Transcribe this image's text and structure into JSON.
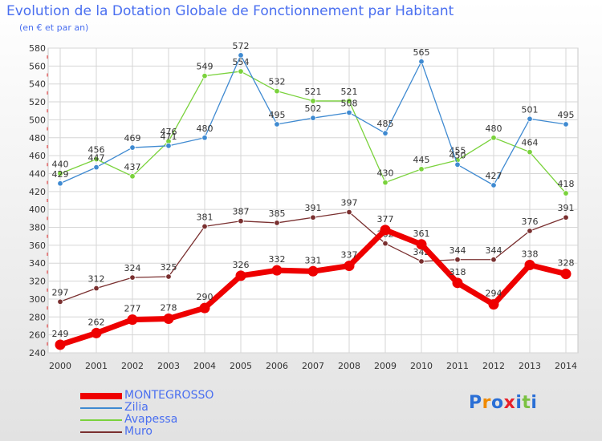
{
  "chart_data": {
    "type": "line",
    "title": "Evolution de la Dotation Globale de Fonctionnement par Habitant",
    "subtitle": "(en € et par an)",
    "x": [
      "2000",
      "2001",
      "2002",
      "2003",
      "2004",
      "2005",
      "2006",
      "2007",
      "2008",
      "2009",
      "2010",
      "2011",
      "2012",
      "2013",
      "2014"
    ],
    "ylim": [
      240,
      580
    ],
    "yticks": [
      240,
      260,
      280,
      300,
      320,
      340,
      360,
      380,
      400,
      420,
      440,
      460,
      480,
      500,
      520,
      540,
      560,
      580
    ],
    "grid": true,
    "legend_position": "bottom-left",
    "series": [
      {
        "name": "Muro",
        "color": "#7a3030",
        "values": [
          297,
          312,
          324,
          325,
          381,
          387,
          385,
          391,
          397,
          362,
          342,
          344,
          344,
          376,
          391
        ]
      },
      {
        "name": "Avapessa",
        "color": "#7ad23c",
        "values": [
          440,
          456,
          437,
          476,
          549,
          554,
          532,
          521,
          521,
          430,
          445,
          455,
          480,
          464,
          418
        ]
      },
      {
        "name": "Zilia",
        "color": "#3f8ad1",
        "values": [
          429,
          447,
          469,
          471,
          480,
          572,
          495,
          502,
          508,
          485,
          565,
          450,
          427,
          501,
          495
        ]
      },
      {
        "name": "MONTEGROSSO",
        "color": "#ee0000",
        "values": [
          249,
          262,
          277,
          278,
          290,
          326,
          332,
          331,
          337,
          377,
          361,
          318,
          294,
          338,
          328
        ]
      }
    ],
    "legend_order": [
      "MONTEGROSSO",
      "Zilia",
      "Avapessa",
      "Muro"
    ]
  },
  "logo": {
    "letters": [
      "P",
      "r",
      "o",
      "x",
      "i",
      "t",
      "i"
    ],
    "colors": [
      "#2a6fd6",
      "#f08a00",
      "#2a6fd6",
      "#e8212a",
      "#2a6fd6",
      "#7ac142",
      "#2a6fd6"
    ]
  }
}
